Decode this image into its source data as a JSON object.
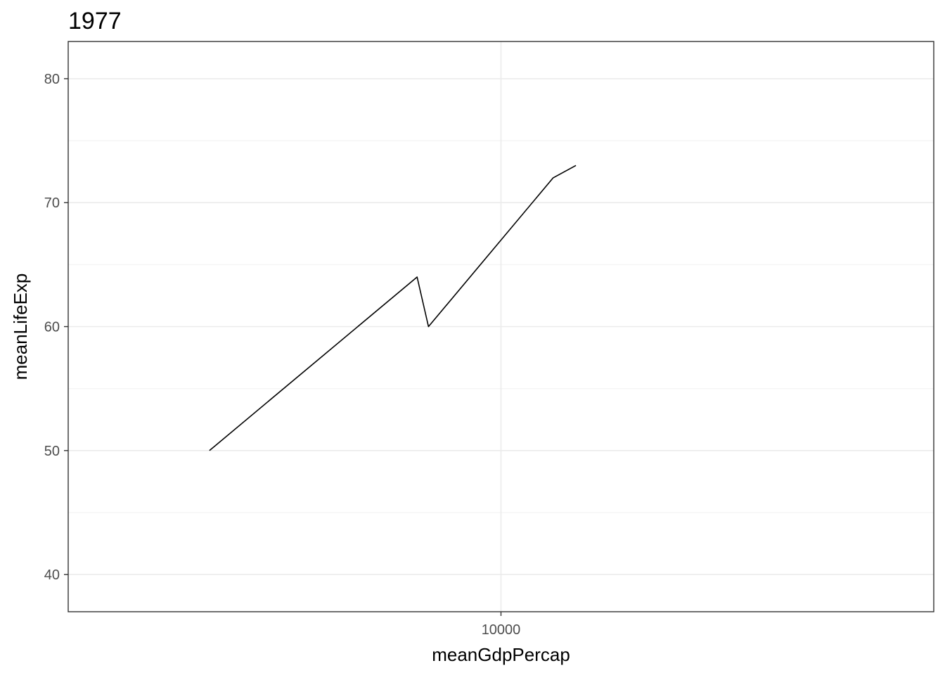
{
  "chart_data": {
    "type": "line",
    "title": "1977",
    "xlabel": "meanGdpPercap",
    "ylabel": "meanLifeExp",
    "x_scale": "log10",
    "xlim": [
      1000,
      100000
    ],
    "ylim": [
      37,
      83
    ],
    "x_ticks": [
      10000
    ],
    "x_tick_labels": [
      "10000"
    ],
    "y_ticks": [
      40,
      50,
      60,
      70,
      80
    ],
    "y_tick_labels": [
      "40",
      "50",
      "60",
      "70",
      "80"
    ],
    "y_minor_ticks": [
      45,
      55,
      65,
      75
    ],
    "grid": true,
    "series": [
      {
        "color": "#000000",
        "x": [
          2120,
          6400,
          6800,
          13200,
          14900
        ],
        "y": [
          50,
          64,
          60,
          72,
          73
        ]
      }
    ]
  }
}
